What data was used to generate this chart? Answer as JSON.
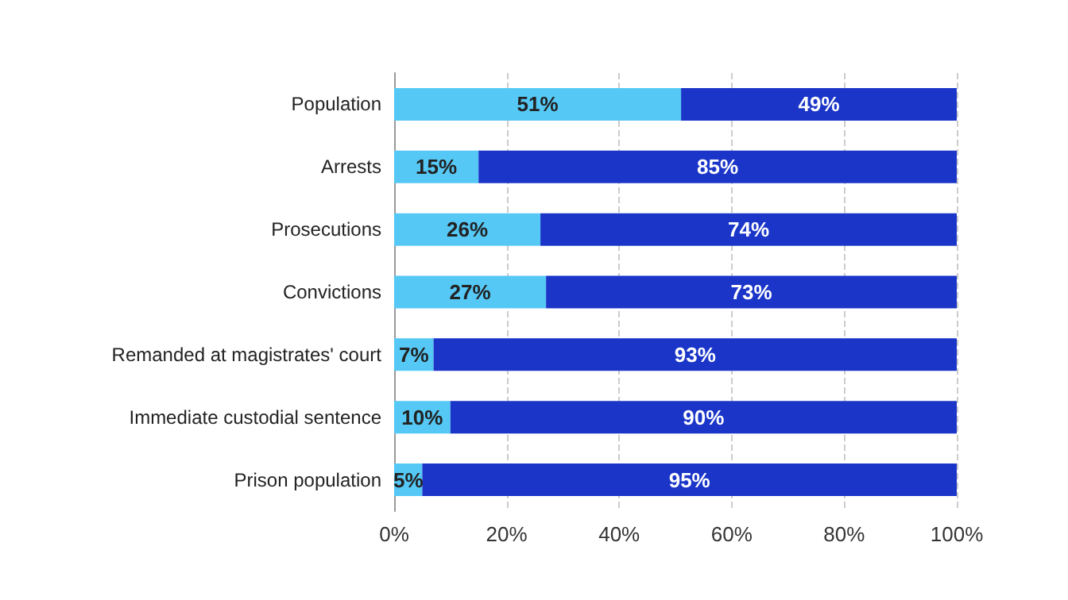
{
  "chart_data": {
    "type": "bar",
    "orientation": "horizontal",
    "stacked": true,
    "categories": [
      "Population",
      "Arrests",
      "Prosecutions",
      "Convictions",
      "Remanded at magistrates' court",
      "Immediate custodial sentence",
      "Prison population"
    ],
    "series": [
      {
        "color": "#55c8f5",
        "values": [
          51,
          15,
          26,
          27,
          7,
          10,
          5
        ],
        "value_labels": [
          "51%",
          "15%",
          "26%",
          "27%",
          "7%",
          "10%",
          "5%"
        ]
      },
      {
        "color": "#1a35c8",
        "values": [
          49,
          85,
          74,
          73,
          93,
          90,
          95
        ],
        "value_labels": [
          "49%",
          "85%",
          "74%",
          "73%",
          "93%",
          "90%",
          "95%"
        ]
      }
    ],
    "xlim": [
      0,
      100
    ],
    "xticks": [
      {
        "value": 0,
        "label": "0%"
      },
      {
        "value": 20,
        "label": "20%"
      },
      {
        "value": 40,
        "label": "40%"
      },
      {
        "value": 60,
        "label": "60%"
      },
      {
        "value": 80,
        "label": "80%"
      },
      {
        "value": 100,
        "label": "100%"
      }
    ],
    "grid": "x"
  }
}
